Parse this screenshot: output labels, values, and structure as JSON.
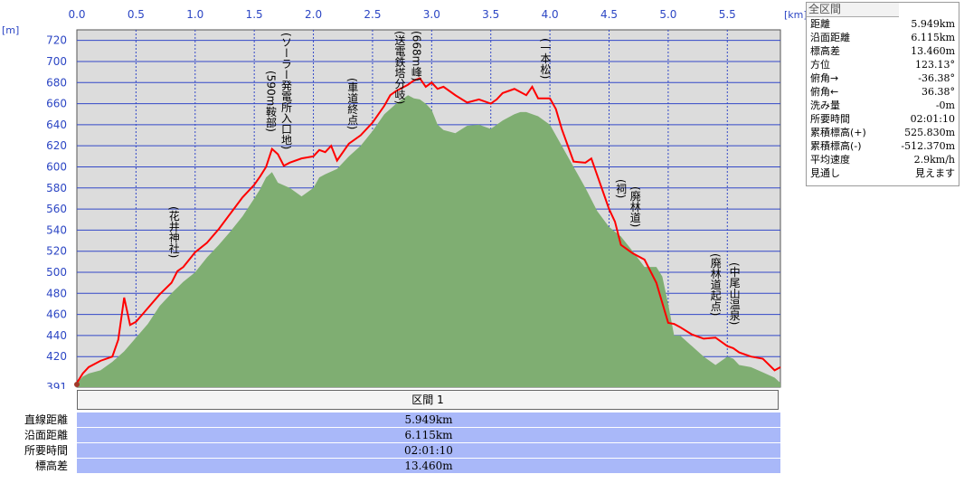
{
  "info_panel": {
    "title": "全区間",
    "rows": [
      {
        "label": "距離",
        "value": "5.949km"
      },
      {
        "label": "沿面距離",
        "value": "6.115km"
      },
      {
        "label": "標高差",
        "value": "13.460m"
      },
      {
        "label": "方位",
        "value": "123.13°"
      },
      {
        "label": "俯角→",
        "value": "-36.38°"
      },
      {
        "label": "俯角←",
        "value": "36.38°"
      },
      {
        "label": "洗み量",
        "value": "-0m"
      },
      {
        "label": "所要時間",
        "value": "02:01:10"
      },
      {
        "label": "累積標高(+)",
        "value": "525.830m"
      },
      {
        "label": "累積標高(-)",
        "value": "-512.370m"
      },
      {
        "label": "平均速度",
        "value": "2.9km/h"
      },
      {
        "label": "見通し",
        "value": "見えます"
      }
    ]
  },
  "table": {
    "header": "区間 1",
    "rows": [
      {
        "label": "直線距離",
        "value": "5.949km"
      },
      {
        "label": "沿面距離",
        "value": "6.115km"
      },
      {
        "label": "所要時間",
        "value": "02:01:10"
      },
      {
        "label": "標高差",
        "value": "13.460m"
      }
    ]
  },
  "chart_data": {
    "type": "area",
    "xlabel": "[km]",
    "ylabel": "[m]",
    "xlim": [
      0,
      5.949
    ],
    "ylim": [
      391,
      730
    ],
    "x_ticks": [
      "0.0",
      "0.5",
      "1.0",
      "1.5",
      "2.0",
      "2.5",
      "3.0",
      "3.5",
      "4.0",
      "4.5",
      "5.0",
      "5.5"
    ],
    "x_tick_values": [
      0,
      0.5,
      1.0,
      1.5,
      2.0,
      2.5,
      3.0,
      3.5,
      4.0,
      4.5,
      5.0,
      5.5
    ],
    "y_ticks": [
      "391",
      "420",
      "440",
      "460",
      "480",
      "500",
      "520",
      "540",
      "560",
      "580",
      "600",
      "620",
      "640",
      "660",
      "680",
      "700",
      "720"
    ],
    "y_tick_values": [
      391,
      420,
      440,
      460,
      480,
      500,
      520,
      540,
      560,
      580,
      600,
      620,
      640,
      660,
      680,
      700,
      720
    ],
    "grid": true,
    "colors": {
      "background": "#dcdcdc",
      "terrain": "#7fae72",
      "route": "#ff0000",
      "grid": "#3348c8",
      "axis_text": "#2c46c4"
    },
    "series": [
      {
        "values_note": "terrain",
        "x": [
          0,
          0.05,
          0.1,
          0.2,
          0.3,
          0.4,
          0.5,
          0.6,
          0.7,
          0.8,
          0.9,
          1.0,
          1.1,
          1.2,
          1.3,
          1.4,
          1.5,
          1.55,
          1.6,
          1.65,
          1.7,
          1.8,
          1.9,
          2.0,
          2.05,
          2.1,
          2.2,
          2.3,
          2.4,
          2.5,
          2.6,
          2.7,
          2.75,
          2.8,
          2.85,
          2.9,
          2.95,
          3.0,
          3.05,
          3.1,
          3.2,
          3.3,
          3.4,
          3.5,
          3.55,
          3.6,
          3.7,
          3.75,
          3.8,
          3.9,
          4.0,
          4.1,
          4.2,
          4.3,
          4.4,
          4.5,
          4.6,
          4.7,
          4.8,
          4.9,
          4.95,
          5.0,
          5.05,
          5.1,
          5.2,
          5.3,
          5.4,
          5.5,
          5.55,
          5.6,
          5.7,
          5.8,
          5.9,
          5.949
        ],
        "y": [
          395,
          401,
          404,
          407,
          415,
          425,
          438,
          451,
          468,
          480,
          491,
          500,
          514,
          526,
          539,
          553,
          570,
          579,
          590,
          595,
          585,
          580,
          572,
          580,
          590,
          593,
          598,
          610,
          620,
          634,
          650,
          660,
          664,
          668,
          665,
          664,
          660,
          654,
          640,
          635,
          632,
          639,
          640,
          636,
          640,
          644,
          650,
          652,
          652,
          648,
          640,
          620,
          600,
          580,
          558,
          543,
          534,
          520,
          505,
          505,
          496,
          470,
          440,
          440,
          430,
          420,
          412,
          420,
          418,
          412,
          410,
          405,
          400,
          395
        ]
      },
      {
        "values_note": "route",
        "x": [
          0,
          0.05,
          0.1,
          0.2,
          0.3,
          0.35,
          0.4,
          0.45,
          0.5,
          0.6,
          0.7,
          0.8,
          0.85,
          0.9,
          1.0,
          1.1,
          1.2,
          1.3,
          1.4,
          1.5,
          1.55,
          1.6,
          1.65,
          1.7,
          1.75,
          1.8,
          1.9,
          2.0,
          2.05,
          2.1,
          2.15,
          2.2,
          2.3,
          2.4,
          2.5,
          2.6,
          2.65,
          2.7,
          2.8,
          2.85,
          2.9,
          2.95,
          3.0,
          3.05,
          3.1,
          3.2,
          3.3,
          3.4,
          3.5,
          3.55,
          3.6,
          3.7,
          3.8,
          3.85,
          3.9,
          4.0,
          4.05,
          4.1,
          4.2,
          4.3,
          4.35,
          4.4,
          4.5,
          4.55,
          4.6,
          4.7,
          4.8,
          4.9,
          5.0,
          5.05,
          5.1,
          5.2,
          5.3,
          5.4,
          5.5,
          5.55,
          5.6,
          5.7,
          5.8,
          5.9,
          5.949
        ],
        "y": [
          395,
          404,
          410,
          416,
          420,
          436,
          476,
          450,
          453,
          466,
          479,
          490,
          501,
          505,
          519,
          528,
          541,
          556,
          571,
          583,
          591,
          600,
          617,
          612,
          601,
          604,
          608,
          610,
          616,
          614,
          620,
          606,
          622,
          630,
          642,
          658,
          668,
          672,
          678,
          682,
          684,
          676,
          680,
          674,
          676,
          668,
          661,
          664,
          660,
          664,
          670,
          674,
          668,
          676,
          665,
          665,
          655,
          636,
          605,
          604,
          608,
          592,
          560,
          548,
          526,
          518,
          512,
          490,
          452,
          451,
          448,
          441,
          437,
          438,
          430,
          428,
          424,
          420,
          418,
          407,
          410
        ]
      }
    ],
    "annotations": [
      {
        "text": "(花井神社)",
        "x": 0.82
      },
      {
        "text": "(ソーラー発電所入口地)",
        "x": 1.77
      },
      {
        "text": "(590m鞍部)",
        "x": 1.64
      },
      {
        "text": "(車道終点)",
        "x": 2.33
      },
      {
        "text": "(送電鉄塔分岐)",
        "x": 2.73
      },
      {
        "text": "(668m峰)",
        "x": 2.87
      },
      {
        "text": "(一本松)",
        "x": 3.96
      },
      {
        "text": "(祠)",
        "x": 4.6
      },
      {
        "text": "(廃林道)",
        "x": 4.72
      },
      {
        "text": "(廃林道起点)",
        "x": 5.4
      },
      {
        "text": "(中尾山温泉)",
        "x": 5.56
      }
    ]
  }
}
